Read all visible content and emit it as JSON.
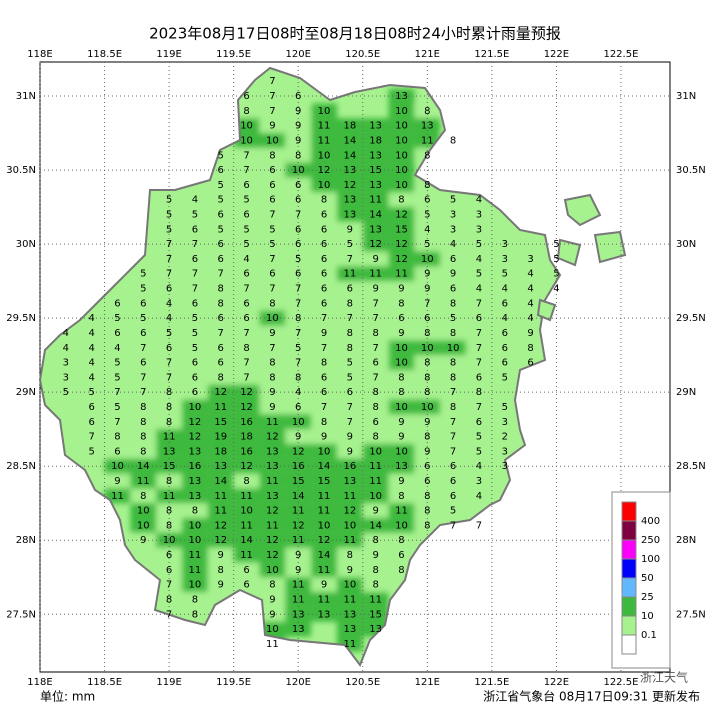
{
  "header": {
    "title": "2023年08月17日08时至08月18日08时24小时累计雨量预报"
  },
  "map": {
    "lon_range": [
      118,
      122.88
    ],
    "lat_range": [
      27.11,
      31.23
    ],
    "lon_ticks": [
      {
        "value": 118,
        "label": "118E"
      },
      {
        "value": 118.5,
        "label": "118.5E"
      },
      {
        "value": 119,
        "label": "119E"
      },
      {
        "value": 119.5,
        "label": "119.5E"
      },
      {
        "value": 120,
        "label": "120E"
      },
      {
        "value": 120.5,
        "label": "120.5E"
      },
      {
        "value": 121,
        "label": "121E"
      },
      {
        "value": 121.5,
        "label": "121.5E"
      },
      {
        "value": 122,
        "label": "122E"
      },
      {
        "value": 122.5,
        "label": "122.5E"
      }
    ],
    "lat_ticks": [
      {
        "value": 31,
        "label": "31N"
      },
      {
        "value": 30.5,
        "label": "30.5N"
      },
      {
        "value": 30,
        "label": "30N"
      },
      {
        "value": 29.5,
        "label": "29.5N"
      },
      {
        "value": 29,
        "label": "29N"
      },
      {
        "value": 28.5,
        "label": "28.5N"
      },
      {
        "value": 28,
        "label": "28N"
      },
      {
        "value": 27.5,
        "label": "27.5N"
      }
    ],
    "stations": [
      {
        "lat": 31.1,
        "lon0": 119.8,
        "values": [
          7
        ]
      },
      {
        "lat": 31.0,
        "lon0": 119.6,
        "values": [
          6,
          7,
          6,
          null,
          null,
          null,
          13
        ]
      },
      {
        "lat": 30.9,
        "lon0": 119.6,
        "values": [
          8,
          7,
          9,
          10,
          null,
          null,
          10,
          8
        ]
      },
      {
        "lat": 30.8,
        "lon0": 119.6,
        "values": [
          10,
          9,
          9,
          11,
          18,
          13,
          10,
          13
        ]
      },
      {
        "lat": 30.7,
        "lon0": 119.6,
        "values": [
          10,
          10,
          9,
          11,
          14,
          18,
          10,
          11,
          8
        ]
      },
      {
        "lat": 30.6,
        "lon0": 119.4,
        "values": [
          5,
          7,
          8,
          8,
          10,
          14,
          13,
          10,
          8
        ]
      },
      {
        "lat": 30.5,
        "lon0": 119.4,
        "values": [
          6,
          7,
          6,
          10,
          12,
          13,
          15,
          10
        ]
      },
      {
        "lat": 30.4,
        "lon0": 119.4,
        "values": [
          5,
          6,
          6,
          6,
          10,
          12,
          13,
          10,
          8
        ]
      },
      {
        "lat": 30.3,
        "lon0": 119.0,
        "values": [
          5,
          4,
          5,
          5,
          6,
          6,
          8,
          13,
          11,
          8,
          6,
          5,
          4
        ]
      },
      {
        "lat": 30.2,
        "lon0": 119.0,
        "values": [
          5,
          5,
          6,
          6,
          7,
          7,
          6,
          13,
          14,
          12,
          5,
          3,
          3
        ]
      },
      {
        "lat": 30.1,
        "lon0": 119.0,
        "values": [
          5,
          6,
          5,
          5,
          5,
          6,
          6,
          9,
          13,
          15,
          4,
          3,
          3
        ]
      },
      {
        "lat": 30.0,
        "lon0": 119.0,
        "values": [
          7,
          7,
          6,
          5,
          5,
          6,
          6,
          5,
          12,
          12,
          5,
          4,
          5,
          3,
          null,
          5
        ]
      },
      {
        "lat": 29.9,
        "lon0": 119.0,
        "values": [
          7,
          6,
          6,
          4,
          7,
          5,
          6,
          7,
          9,
          12,
          10,
          6,
          4,
          3,
          3,
          5
        ]
      },
      {
        "lat": 29.8,
        "lon0": 118.8,
        "values": [
          5,
          7,
          7,
          7,
          6,
          6,
          6,
          6,
          11,
          11,
          11,
          9,
          9,
          5,
          5,
          4,
          5
        ]
      },
      {
        "lat": 29.7,
        "lon0": 118.8,
        "values": [
          5,
          6,
          7,
          8,
          7,
          7,
          7,
          6,
          6,
          9,
          9,
          9,
          6,
          4,
          4,
          4,
          4
        ]
      },
      {
        "lat": 29.6,
        "lon0": 118.6,
        "values": [
          6,
          6,
          4,
          6,
          8,
          6,
          8,
          7,
          6,
          8,
          7,
          8,
          7,
          8,
          7,
          6,
          4
        ]
      },
      {
        "lat": 29.5,
        "lon0": 118.4,
        "values": [
          4,
          5,
          5,
          4,
          5,
          6,
          6,
          10,
          8,
          7,
          7,
          7,
          6,
          6,
          5,
          6,
          4,
          4
        ]
      },
      {
        "lat": 29.4,
        "lon0": 118.2,
        "values": [
          4,
          4,
          6,
          6,
          5,
          5,
          7,
          7,
          9,
          7,
          9,
          8,
          8,
          9,
          8,
          8,
          7,
          6,
          9
        ]
      },
      {
        "lat": 29.3,
        "lon0": 118.2,
        "values": [
          4,
          4,
          4,
          7,
          6,
          5,
          6,
          8,
          7,
          5,
          7,
          8,
          7,
          10,
          10,
          10,
          7,
          6,
          8
        ]
      },
      {
        "lat": 29.2,
        "lon0": 118.2,
        "values": [
          3,
          4,
          5,
          6,
          7,
          6,
          6,
          7,
          8,
          7,
          8,
          5,
          6,
          10,
          8,
          8,
          7,
          6,
          6
        ]
      },
      {
        "lat": 29.1,
        "lon0": 118.2,
        "values": [
          3,
          4,
          5,
          7,
          7,
          6,
          8,
          7,
          8,
          8,
          6,
          5,
          7,
          8,
          8,
          8,
          6,
          5
        ]
      },
      {
        "lat": 29.0,
        "lon0": 118.2,
        "values": [
          5,
          5,
          7,
          7,
          8,
          6,
          12,
          12,
          9,
          4,
          6,
          6,
          8,
          8,
          8,
          7,
          8
        ]
      },
      {
        "lat": 28.9,
        "lon0": 118.4,
        "values": [
          6,
          5,
          8,
          8,
          10,
          11,
          12,
          9,
          6,
          7,
          7,
          8,
          10,
          10,
          8,
          7,
          5
        ]
      },
      {
        "lat": 28.8,
        "lon0": 118.4,
        "values": [
          6,
          7,
          8,
          8,
          12,
          15,
          16,
          11,
          10,
          8,
          7,
          6,
          9,
          9,
          7,
          6,
          3
        ]
      },
      {
        "lat": 28.7,
        "lon0": 118.4,
        "values": [
          7,
          8,
          8,
          11,
          12,
          19,
          18,
          12,
          9,
          9,
          9,
          8,
          9,
          8,
          7,
          5,
          2
        ]
      },
      {
        "lat": 28.6,
        "lon0": 118.4,
        "values": [
          5,
          6,
          8,
          13,
          13,
          18,
          16,
          13,
          12,
          10,
          9,
          10,
          10,
          9,
          7,
          5,
          3
        ]
      },
      {
        "lat": 28.5,
        "lon0": 118.6,
        "values": [
          10,
          14,
          15,
          16,
          13,
          12,
          13,
          16,
          14,
          16,
          11,
          13,
          6,
          6,
          4,
          3
        ]
      },
      {
        "lat": 28.4,
        "lon0": 118.6,
        "values": [
          9,
          11,
          8,
          13,
          14,
          8,
          11,
          15,
          15,
          13,
          11,
          9,
          6,
          6,
          3
        ]
      },
      {
        "lat": 28.3,
        "lon0": 118.6,
        "values": [
          11,
          8,
          11,
          13,
          11,
          11,
          13,
          14,
          11,
          11,
          10,
          8,
          8,
          6,
          4
        ]
      },
      {
        "lat": 28.2,
        "lon0": 118.8,
        "values": [
          10,
          8,
          8,
          11,
          10,
          12,
          11,
          11,
          12,
          9,
          11,
          8,
          5
        ]
      },
      {
        "lat": 28.1,
        "lon0": 118.8,
        "values": [
          10,
          8,
          10,
          12,
          11,
          11,
          12,
          10,
          10,
          14,
          10,
          8,
          7,
          7
        ]
      },
      {
        "lat": 28.0,
        "lon0": 118.8,
        "values": [
          9,
          10,
          10,
          12,
          14,
          12,
          11,
          12,
          11,
          8,
          8
        ]
      },
      {
        "lat": 27.9,
        "lon0": 119.0,
        "values": [
          6,
          11,
          9,
          11,
          12,
          9,
          14,
          8,
          9,
          6
        ]
      },
      {
        "lat": 27.8,
        "lon0": 119.0,
        "values": [
          6,
          11,
          8,
          6,
          10,
          9,
          11,
          9,
          8,
          8
        ]
      },
      {
        "lat": 27.7,
        "lon0": 119.0,
        "values": [
          7,
          10,
          9,
          6,
          8,
          11,
          9,
          10,
          8
        ]
      },
      {
        "lat": 27.6,
        "lon0": 119.0,
        "values": [
          8,
          8,
          null,
          null,
          9,
          11,
          11,
          11,
          11
        ]
      },
      {
        "lat": 27.5,
        "lon0": 119.0,
        "values": [
          7,
          8,
          null,
          null,
          9,
          13,
          13,
          13,
          15
        ]
      },
      {
        "lat": 27.4,
        "lon0": 119.8,
        "values": [
          10,
          13,
          null,
          13,
          13
        ]
      },
      {
        "lat": 27.3,
        "lon0": 119.8,
        "values": [
          11,
          null,
          null,
          11
        ]
      }
    ],
    "legend": {
      "levels": [
        0.1,
        10,
        25,
        50,
        100,
        250,
        400
      ],
      "colors": [
        "#ffffff",
        "#a6f28f",
        "#3db93d",
        "#61b8ff",
        "#0000fe",
        "#fa00fa",
        "#7f0040",
        "#ff0000"
      ]
    }
  },
  "footer": {
    "unit": "单位: mm",
    "issuer": "浙江省气象台 08月17日09:31 更新发布"
  },
  "watermark": "浙江天气"
}
